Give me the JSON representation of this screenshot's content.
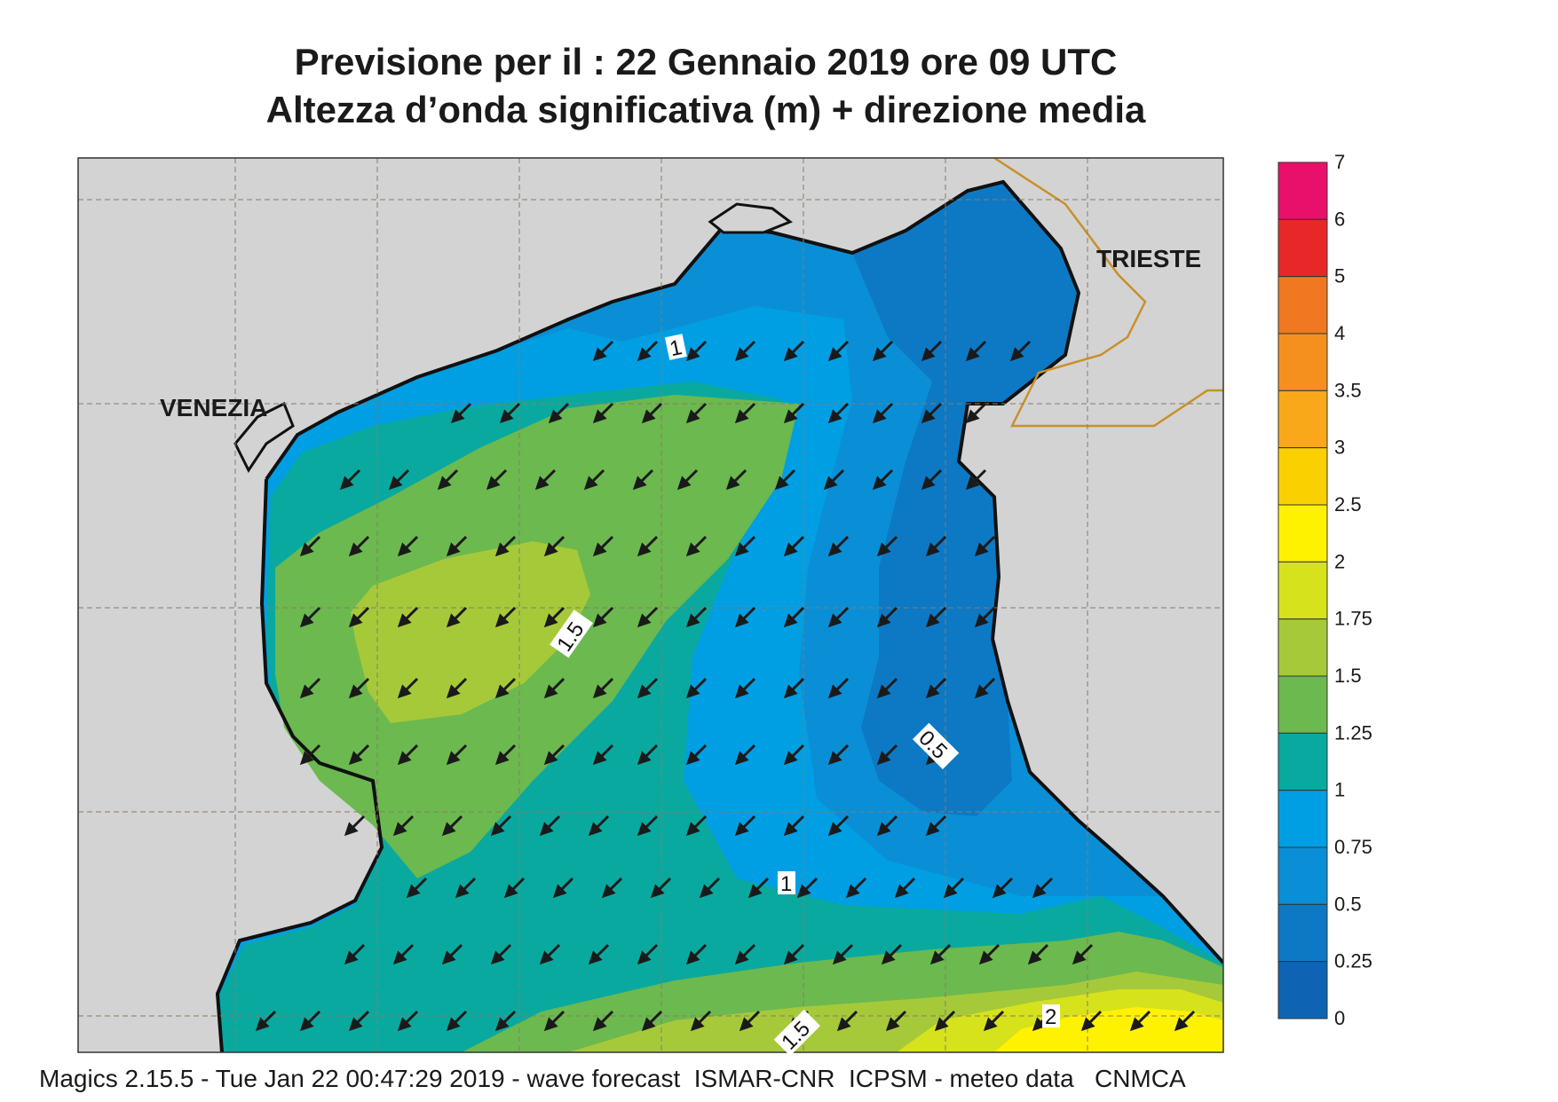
{
  "title": {
    "line1": "Previsione per il  :  22  Gennaio  2019   ore 09 UTC",
    "line2": "Altezza d’onda significativa (m) + direzione media"
  },
  "map": {
    "places": [
      {
        "name": "VENEZIA"
      },
      {
        "name": "TRIESTE"
      }
    ],
    "contour_labels": [
      "1",
      "1.5",
      "0.5",
      "1",
      "1.5",
      "2"
    ],
    "land_color": "#d3d3d3",
    "border_color": "#c8902a",
    "arrow_direction": "south-west"
  },
  "legend": {
    "ticks": [
      "7",
      "6",
      "5",
      "4",
      "3.5",
      "3",
      "2.5",
      "2",
      "1.75",
      "1.5",
      "1.25",
      "1",
      "0.75",
      "0.5",
      "0.25",
      "0"
    ],
    "colors_top_to_bottom": [
      "#e8106a",
      "#e82828",
      "#f07820",
      "#f5901e",
      "#f8a818",
      "#fbd000",
      "#fff200",
      "#d6e21c",
      "#a6c93a",
      "#6cb94f",
      "#0aa99f",
      "#009fe3",
      "#0a8fd6",
      "#0d79c4",
      "#0e64b2"
    ]
  },
  "footer": "Magics 2.15.5 - Tue Jan 22 00:47:29 2019 - wave forecast  ISMAR-CNR  ICPSM - meteo data   CNMCA"
}
